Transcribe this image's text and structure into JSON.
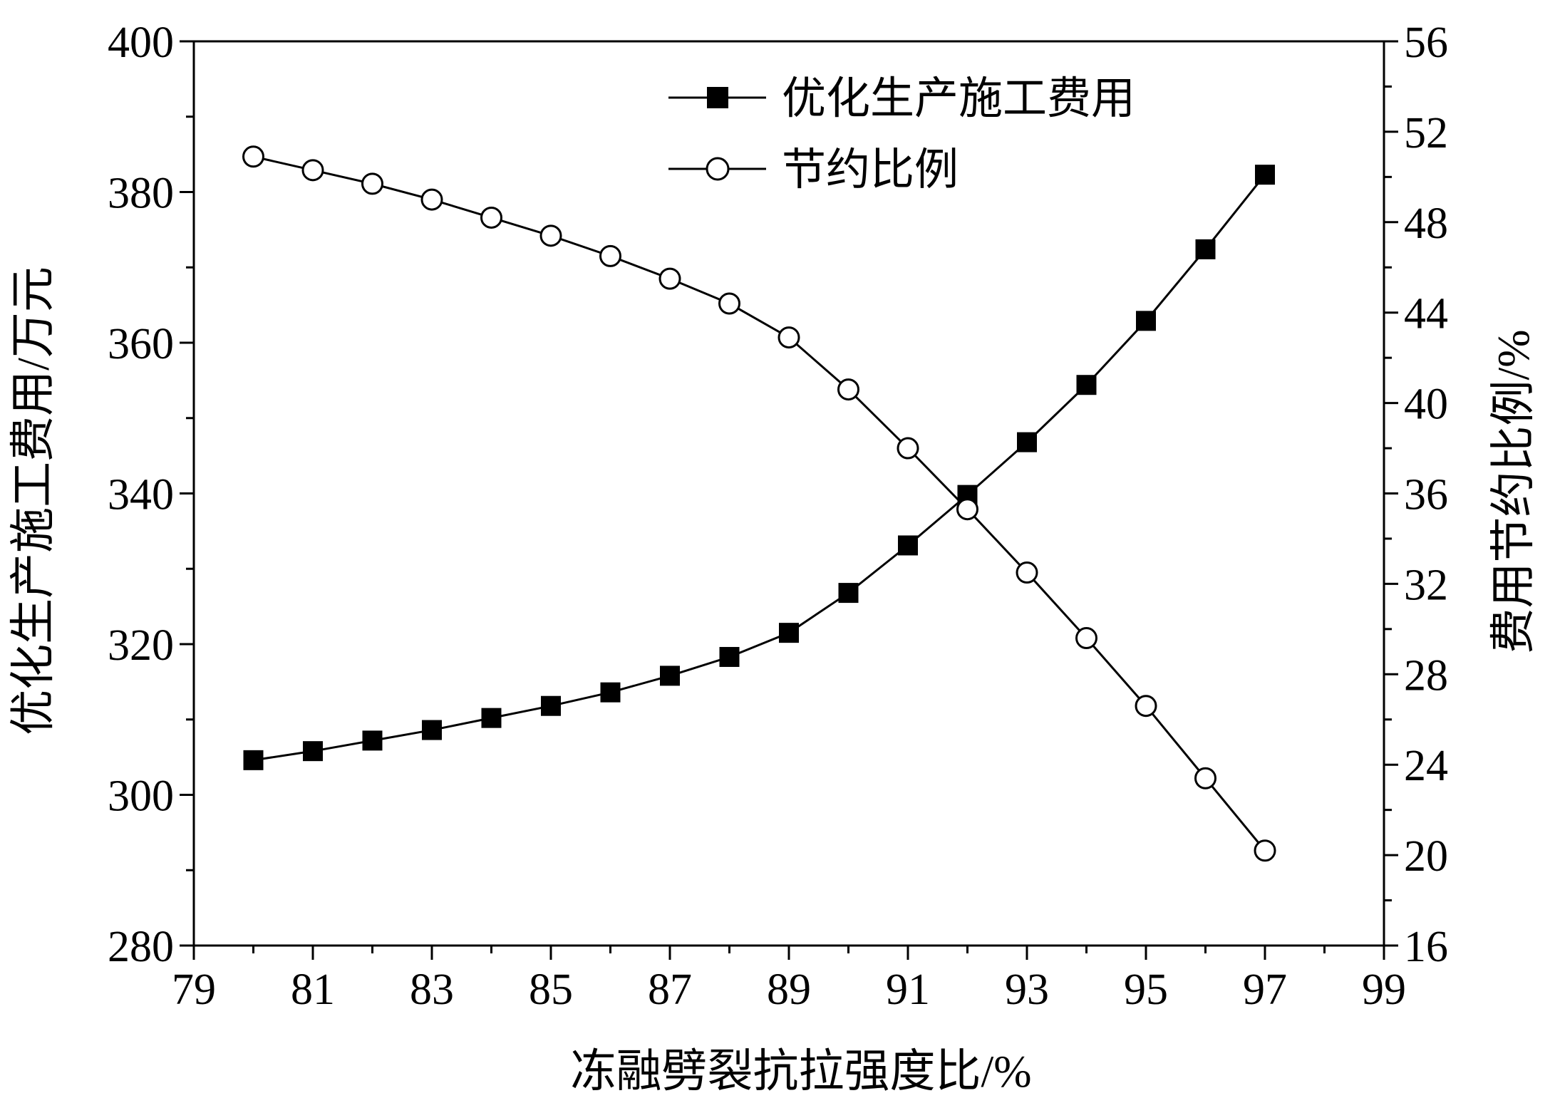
{
  "chart_data": {
    "type": "line",
    "title": "",
    "xlabel": "冻融劈裂抗拉强度比/%",
    "ylabel_left": "优化生产施工费用/万元",
    "ylabel_right": "费用节约比例/%",
    "xlim": [
      79,
      99
    ],
    "ylim_left": [
      280,
      400
    ],
    "ylim_right": [
      16,
      56
    ],
    "x_ticks": [
      "79",
      "81",
      "83",
      "85",
      "87",
      "89",
      "91",
      "93",
      "95",
      "97",
      "99"
    ],
    "y_left_ticks": [
      "280",
      "300",
      "320",
      "340",
      "360",
      "380",
      "400"
    ],
    "y_right_ticks": [
      "16",
      "20",
      "24",
      "28",
      "32",
      "36",
      "40",
      "44",
      "48",
      "52",
      "56"
    ],
    "grid": false,
    "legend_position": "top-center",
    "x": [
      80,
      81,
      82,
      83,
      84,
      85,
      86,
      87,
      88,
      89,
      90,
      91,
      92,
      93,
      94,
      95,
      96,
      97
    ],
    "series": [
      {
        "name": "优化生产施工费用",
        "axis": "left",
        "marker": "filled-square",
        "color": "#000000",
        "values": [
          304.6,
          305.8,
          307.2,
          308.6,
          310.2,
          311.8,
          313.6,
          315.8,
          318.3,
          321.5,
          326.8,
          333.1,
          339.8,
          346.8,
          354.4,
          362.9,
          372.4,
          382.3
        ]
      },
      {
        "name": "节约比例",
        "axis": "right",
        "marker": "open-circle",
        "color": "#000000",
        "values": [
          50.9,
          50.3,
          49.7,
          49.0,
          48.2,
          47.4,
          46.5,
          45.5,
          44.4,
          42.9,
          40.6,
          38.0,
          35.3,
          32.5,
          29.6,
          26.6,
          23.4,
          20.2
        ]
      }
    ]
  }
}
